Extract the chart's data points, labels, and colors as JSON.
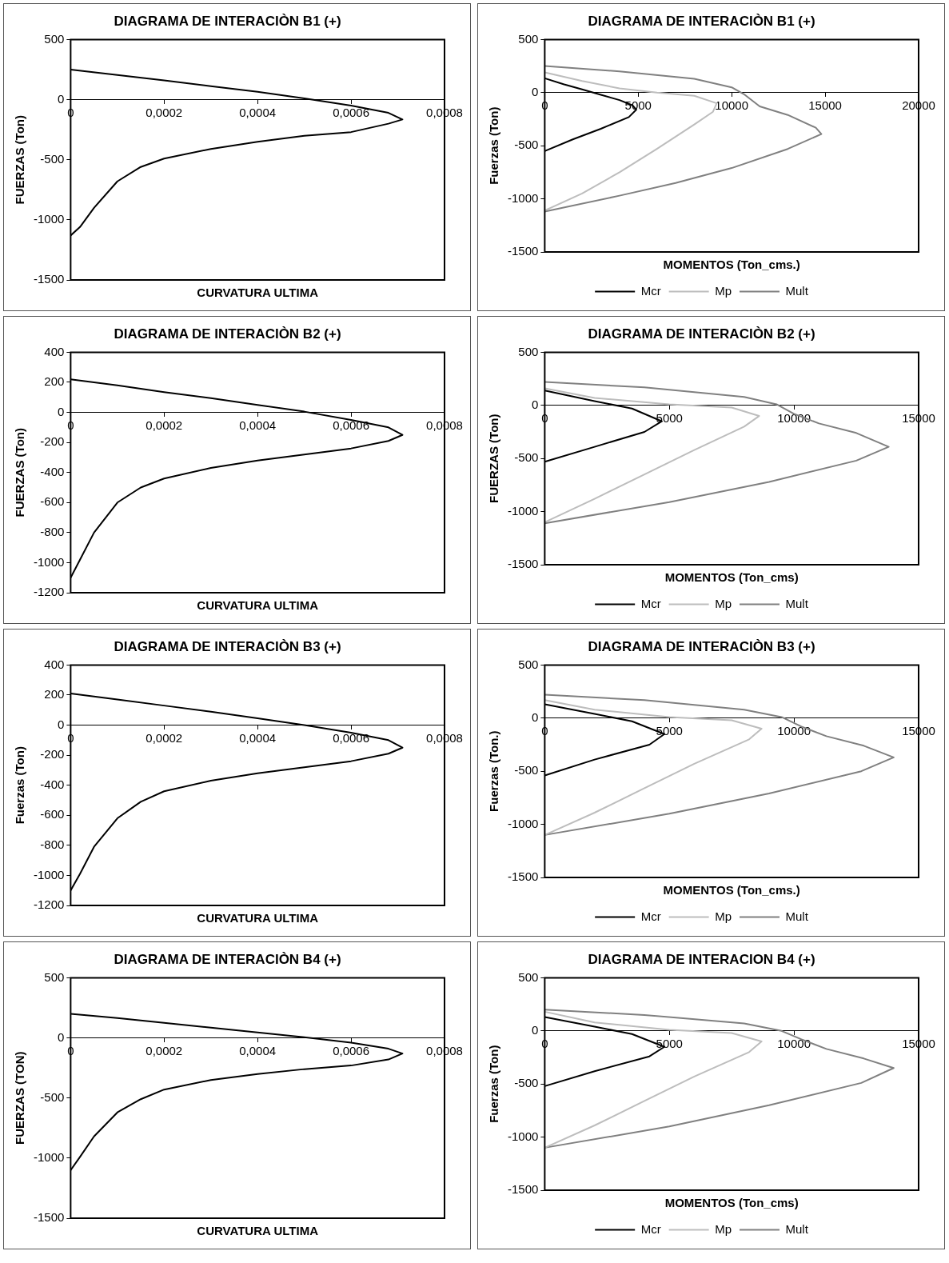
{
  "chart_data": [
    {
      "type": "line",
      "title": "DIAGRAMA DE INTERACIÒN B1 (+)",
      "xlabel": "CURVATURA ULTIMA",
      "ylabel": "FUERZAS (Ton)",
      "xlim": [
        0,
        0.0008
      ],
      "xticks": [
        0,
        {
          "value": 0.0002,
          "label": "0,0002"
        },
        {
          "value": 0.0004,
          "label": "0,0004"
        },
        {
          "value": 0.0006,
          "label": "0,0006"
        },
        {
          "value": 0.0008,
          "label": "0,0008"
        }
      ],
      "ylim": [
        -1500,
        500
      ],
      "yticks": [
        -1500,
        -1000,
        -500,
        0,
        500
      ],
      "grid": false,
      "legend": false,
      "marker": "none",
      "series": [
        {
          "color": "#000000",
          "x": [
            0,
            0.0001,
            0.0002,
            0.0003,
            0.0004,
            0.0005,
            0.0006,
            0.00068,
            0.00071,
            0.00068,
            0.0006,
            0.0005,
            0.0004,
            0.0003,
            0.0002,
            0.00015,
            0.0001,
            5e-05,
            2e-05,
            0
          ],
          "values": [
            250,
            205,
            160,
            112,
            65,
            10,
            -50,
            -110,
            -165,
            -200,
            -270,
            -300,
            -350,
            -410,
            -490,
            -560,
            -680,
            -900,
            -1060,
            -1130
          ]
        }
      ]
    },
    {
      "type": "line",
      "title": "DIAGRAMA DE INTERACIÒN B1 (+)",
      "xlabel": "MOMENTOS (Ton_cms.)",
      "ylabel": "Fuerzas (Ton)",
      "xlim": [
        0,
        20000
      ],
      "xticks": [
        0,
        5000,
        10000,
        15000,
        20000
      ],
      "ylim": [
        -1500,
        500
      ],
      "yticks": [
        -1500,
        -1000,
        -500,
        0,
        500
      ],
      "grid": false,
      "legend": "bottom",
      "marker": "none",
      "series": [
        {
          "name": "Mcr",
          "color": "#000000",
          "x": [
            0,
            1000,
            2000,
            3000,
            4000,
            4700,
            4900,
            4500,
            3000,
            1500,
            0
          ],
          "values": [
            135,
            80,
            30,
            -20,
            -70,
            -120,
            -160,
            -230,
            -340,
            -440,
            -550
          ]
        },
        {
          "name": "Mp",
          "color": "#bdbdbd",
          "x": [
            0,
            2000,
            4000,
            6000,
            8000,
            9200,
            9000,
            8000,
            6000,
            4000,
            2000,
            0
          ],
          "values": [
            190,
            110,
            40,
            0,
            -30,
            -100,
            -180,
            -300,
            -530,
            -750,
            -950,
            -1110
          ]
        },
        {
          "name": "Mult",
          "color": "#808080",
          "x": [
            0,
            4000,
            8000,
            10000,
            10700,
            11500,
            13000,
            14500,
            14800,
            13000,
            10000,
            7000,
            4000,
            0
          ],
          "values": [
            250,
            200,
            130,
            50,
            -20,
            -130,
            -210,
            -330,
            -390,
            -530,
            -710,
            -850,
            -970,
            -1120
          ]
        }
      ]
    },
    {
      "type": "line",
      "title": "DIAGRAMA DE INTERACIÒN B2 (+)",
      "xlabel": "CURVATURA ULTIMA",
      "ylabel": "FUERZAS (Ton)",
      "xlim": [
        0,
        0.0008
      ],
      "xticks": [
        0,
        {
          "value": 0.0002,
          "label": "0,0002"
        },
        {
          "value": 0.0004,
          "label": "0,0004"
        },
        {
          "value": 0.0006,
          "label": "0,0006"
        },
        {
          "value": 0.0008,
          "label": "0,0008"
        }
      ],
      "ylim": [
        -1200,
        400
      ],
      "yticks": [
        -1200,
        -1000,
        -800,
        -600,
        -400,
        -200,
        0,
        200,
        400
      ],
      "grid": false,
      "legend": false,
      "marker": "none",
      "series": [
        {
          "color": "#000000",
          "x": [
            0,
            0.0001,
            0.0002,
            0.0003,
            0.0004,
            0.0005,
            0.0006,
            0.00068,
            0.00071,
            0.00068,
            0.0006,
            0.0005,
            0.0004,
            0.0003,
            0.0002,
            0.00015,
            0.0001,
            5e-05,
            2e-05,
            0
          ],
          "values": [
            220,
            180,
            135,
            95,
            50,
            5,
            -50,
            -100,
            -150,
            -190,
            -240,
            -280,
            -320,
            -370,
            -440,
            -500,
            -600,
            -800,
            -980,
            -1100
          ]
        }
      ]
    },
    {
      "type": "line",
      "title": "DIAGRAMA DE INTERACIÒN B2 (+)",
      "xlabel": "MOMENTOS (Ton_cms)",
      "ylabel": "FUERZAS (Ton)",
      "xlim": [
        0,
        15000
      ],
      "xticks": [
        0,
        5000,
        10000,
        15000
      ],
      "ylim": [
        -1500,
        500
      ],
      "yticks": [
        -1500,
        -1000,
        -500,
        0,
        500
      ],
      "grid": false,
      "legend": "bottom",
      "marker": "none",
      "series": [
        {
          "name": "Mcr",
          "color": "#000000",
          "x": [
            0,
            2000,
            3500,
            4700,
            4000,
            2000,
            0
          ],
          "values": [
            140,
            40,
            -30,
            -150,
            -250,
            -390,
            -530
          ]
        },
        {
          "name": "Mp",
          "color": "#bdbdbd",
          "x": [
            0,
            2000,
            5000,
            7500,
            8600,
            8000,
            6000,
            4000,
            2000,
            0
          ],
          "values": [
            160,
            70,
            10,
            -20,
            -100,
            -200,
            -420,
            -650,
            -880,
            -1100
          ]
        },
        {
          "name": "Mult",
          "color": "#808080",
          "x": [
            0,
            4000,
            8000,
            9300,
            10000,
            11000,
            12500,
            13800,
            12500,
            9000,
            5000,
            0
          ],
          "values": [
            220,
            170,
            80,
            10,
            -80,
            -170,
            -260,
            -390,
            -520,
            -720,
            -910,
            -1110
          ]
        }
      ]
    },
    {
      "type": "line",
      "title": "DIAGRAMA DE INTERACIÒN B3 (+)",
      "xlabel": "CURVATURA ULTIMA",
      "ylabel": "Fuerzas (Ton)",
      "xlim": [
        0,
        0.0008
      ],
      "xticks": [
        0,
        {
          "value": 0.0002,
          "label": "0,0002"
        },
        {
          "value": 0.0004,
          "label": "0,0004"
        },
        {
          "value": 0.0006,
          "label": "0,0006"
        },
        {
          "value": 0.0008,
          "label": "0,0008"
        }
      ],
      "ylim": [
        -1200,
        400
      ],
      "yticks": [
        -1200,
        -1000,
        -800,
        -600,
        -400,
        -200,
        0,
        200,
        400
      ],
      "grid": false,
      "legend": false,
      "marker": "none",
      "series": [
        {
          "color": "#000000",
          "x": [
            0,
            0.0001,
            0.0002,
            0.0003,
            0.0004,
            0.0005,
            0.0006,
            0.00068,
            0.00071,
            0.00068,
            0.0006,
            0.0005,
            0.0004,
            0.0003,
            0.0002,
            0.00015,
            0.0001,
            5e-05,
            2e-05,
            0
          ],
          "values": [
            210,
            170,
            130,
            90,
            45,
            0,
            -50,
            -100,
            -150,
            -190,
            -240,
            -280,
            -320,
            -370,
            -440,
            -510,
            -620,
            -810,
            -990,
            -1100
          ]
        }
      ]
    },
    {
      "type": "line",
      "title": "DIAGRAMA DE INTERACIÒN B3 (+)",
      "xlabel": "MOMENTOS (Ton_cms.)",
      "ylabel": "Fuerzas (Ton.)",
      "xlim": [
        0,
        15000
      ],
      "xticks": [
        0,
        5000,
        10000,
        15000
      ],
      "ylim": [
        -1500,
        500
      ],
      "yticks": [
        -1500,
        -1000,
        -500,
        0,
        500
      ],
      "grid": false,
      "legend": "bottom",
      "marker": "none",
      "series": [
        {
          "name": "Mcr",
          "color": "#000000",
          "x": [
            0,
            2000,
            3500,
            4800,
            4200,
            2000,
            0
          ],
          "values": [
            130,
            40,
            -30,
            -150,
            -250,
            -390,
            -540
          ]
        },
        {
          "name": "Mp",
          "color": "#bdbdbd",
          "x": [
            0,
            2000,
            5000,
            7500,
            8700,
            8200,
            6000,
            4000,
            2000,
            0
          ],
          "values": [
            170,
            80,
            10,
            -20,
            -100,
            -200,
            -430,
            -660,
            -890,
            -1100
          ]
        },
        {
          "name": "Mult",
          "color": "#808080",
          "x": [
            0,
            4000,
            8000,
            9500,
            10300,
            11300,
            12800,
            14000,
            12700,
            9000,
            5000,
            0
          ],
          "values": [
            220,
            170,
            80,
            10,
            -80,
            -170,
            -260,
            -370,
            -500,
            -710,
            -900,
            -1100
          ]
        }
      ]
    },
    {
      "type": "line",
      "title": "DIAGRAMA DE INTERACIÒN B4 (+)",
      "xlabel": "CURVATURA ULTIMA",
      "ylabel": "FUERZAS (TON)",
      "xlim": [
        0,
        0.0008
      ],
      "xticks": [
        0,
        {
          "value": 0.0002,
          "label": "0,0002"
        },
        {
          "value": 0.0004,
          "label": "0,0004"
        },
        {
          "value": 0.0006,
          "label": "0,0006"
        },
        {
          "value": 0.0008,
          "label": "0,0008"
        }
      ],
      "ylim": [
        -1500,
        500
      ],
      "yticks": [
        -1500,
        -1000,
        -500,
        0,
        500
      ],
      "grid": false,
      "legend": false,
      "marker": "none",
      "series": [
        {
          "color": "#000000",
          "x": [
            0,
            0.0001,
            0.0002,
            0.0003,
            0.0004,
            0.0005,
            0.0006,
            0.00068,
            0.00071,
            0.00068,
            0.0006,
            0.0005,
            0.0004,
            0.0003,
            0.0002,
            0.00015,
            0.0001,
            5e-05,
            2e-05,
            0
          ],
          "values": [
            200,
            165,
            125,
            85,
            45,
            5,
            -40,
            -90,
            -130,
            -180,
            -230,
            -260,
            -300,
            -350,
            -430,
            -510,
            -620,
            -820,
            -990,
            -1100
          ]
        }
      ]
    },
    {
      "type": "line",
      "title": "DIAGRAMA DE INTERACION B4 (+)",
      "xlabel": "MOMENTOS (Ton_cms)",
      "ylabel": "Fuerzas (Ton)",
      "xlim": [
        0,
        15000
      ],
      "xticks": [
        0,
        5000,
        10000,
        15000
      ],
      "ylim": [
        -1500,
        500
      ],
      "yticks": [
        -1500,
        -1000,
        -500,
        0,
        500
      ],
      "grid": false,
      "legend": "bottom",
      "marker": "none",
      "series": [
        {
          "name": "Mcr",
          "color": "#000000",
          "x": [
            0,
            2000,
            3500,
            4800,
            4200,
            2000,
            0
          ],
          "values": [
            130,
            40,
            -30,
            -150,
            -240,
            -380,
            -520
          ]
        },
        {
          "name": "Mp",
          "color": "#bdbdbd",
          "x": [
            0,
            2000,
            5000,
            7500,
            8700,
            8200,
            6000,
            4000,
            2000,
            0
          ],
          "values": [
            180,
            80,
            10,
            -20,
            -100,
            -200,
            -430,
            -660,
            -890,
            -1100
          ]
        },
        {
          "name": "Mult",
          "color": "#808080",
          "x": [
            0,
            4000,
            8000,
            9500,
            10300,
            11300,
            12800,
            14000,
            12700,
            9000,
            5000,
            0
          ],
          "values": [
            200,
            150,
            70,
            0,
            -80,
            -170,
            -260,
            -350,
            -490,
            -700,
            -900,
            -1100
          ]
        }
      ]
    }
  ]
}
